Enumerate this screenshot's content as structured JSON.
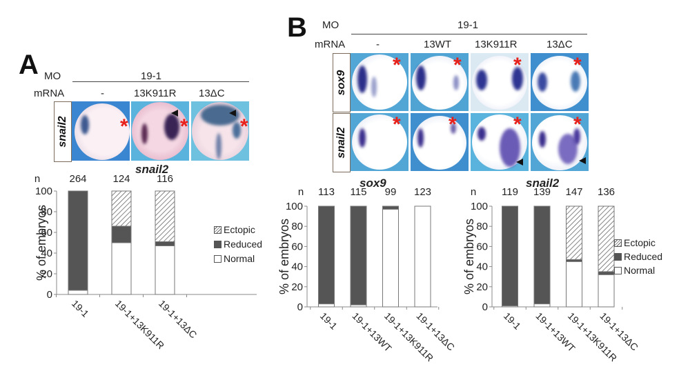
{
  "panels": {
    "A": {
      "letter": "A",
      "mo_label": "MO",
      "mo_value": "19-1",
      "mrna_label": "mRNA",
      "mrna_values": [
        "-",
        "13K911R",
        "13ΔC"
      ],
      "gene_rows": [
        "snail2"
      ]
    },
    "B": {
      "letter": "B",
      "mo_label": "MO",
      "mo_value": "19-1",
      "mrna_label": "mRNA",
      "mrna_values": [
        "-",
        "13WT",
        "13K911R",
        "13ΔC"
      ],
      "gene_rows": [
        "sox9",
        "snail2"
      ]
    }
  },
  "legend": {
    "ectopic": "Ectopic",
    "reduced": "Reduced",
    "normal": "Normal"
  },
  "colors": {
    "reduced": "#555555",
    "normal": "#ffffff",
    "ectopic_hatch": "#666666",
    "asterisk": "#e8201a"
  },
  "chart_data": [
    {
      "id": "A-snail2",
      "type": "bar",
      "stacked": true,
      "title": "snail2",
      "n_label": "n",
      "n": [
        264,
        124,
        116
      ],
      "categories": [
        "19-1",
        "19-1+13K911R",
        "19-1+13ΔC"
      ],
      "ylabel": "% of embryos",
      "xlabel": "",
      "ylim": [
        0,
        100
      ],
      "yticks": [
        0,
        20,
        40,
        60,
        80,
        100
      ],
      "grid": false,
      "legend": "right",
      "series": [
        {
          "name": "Normal",
          "values": [
            4,
            50,
            47
          ]
        },
        {
          "name": "Reduced",
          "values": [
            96,
            16,
            4
          ]
        },
        {
          "name": "Ectopic",
          "values": [
            0,
            34,
            49
          ]
        }
      ]
    },
    {
      "id": "B-sox9",
      "type": "bar",
      "stacked": true,
      "title": "sox9",
      "n_label": "n",
      "n": [
        113,
        115,
        99,
        123
      ],
      "categories": [
        "19-1",
        "19-1+13WT",
        "19-1+13K911R",
        "19-1+13ΔC"
      ],
      "ylabel": "% of embryos",
      "xlabel": "",
      "ylim": [
        0,
        100
      ],
      "yticks": [
        0,
        20,
        40,
        60,
        80,
        100
      ],
      "grid": false,
      "legend": "none",
      "series": [
        {
          "name": "Normal",
          "values": [
            3,
            2,
            97,
            100
          ]
        },
        {
          "name": "Reduced",
          "values": [
            97,
            98,
            3,
            0
          ]
        },
        {
          "name": "Ectopic",
          "values": [
            0,
            0,
            0,
            0
          ]
        }
      ]
    },
    {
      "id": "B-snail2",
      "type": "bar",
      "stacked": true,
      "title": "snail2",
      "n_label": "n",
      "n": [
        119,
        139,
        147,
        136
      ],
      "categories": [
        "19-1",
        "19-1+13WT",
        "19-1+13K911R",
        "19-1+13ΔC"
      ],
      "ylabel": "% of embryos",
      "xlabel": "",
      "ylim": [
        0,
        100
      ],
      "yticks": [
        0,
        20,
        40,
        60,
        80,
        100
      ],
      "grid": false,
      "legend": "right",
      "series": [
        {
          "name": "Normal",
          "values": [
            1,
            3,
            45,
            32
          ]
        },
        {
          "name": "Reduced",
          "values": [
            99,
            97,
            2,
            3
          ]
        },
        {
          "name": "Ectopic",
          "values": [
            0,
            0,
            53,
            65
          ]
        }
      ]
    }
  ]
}
